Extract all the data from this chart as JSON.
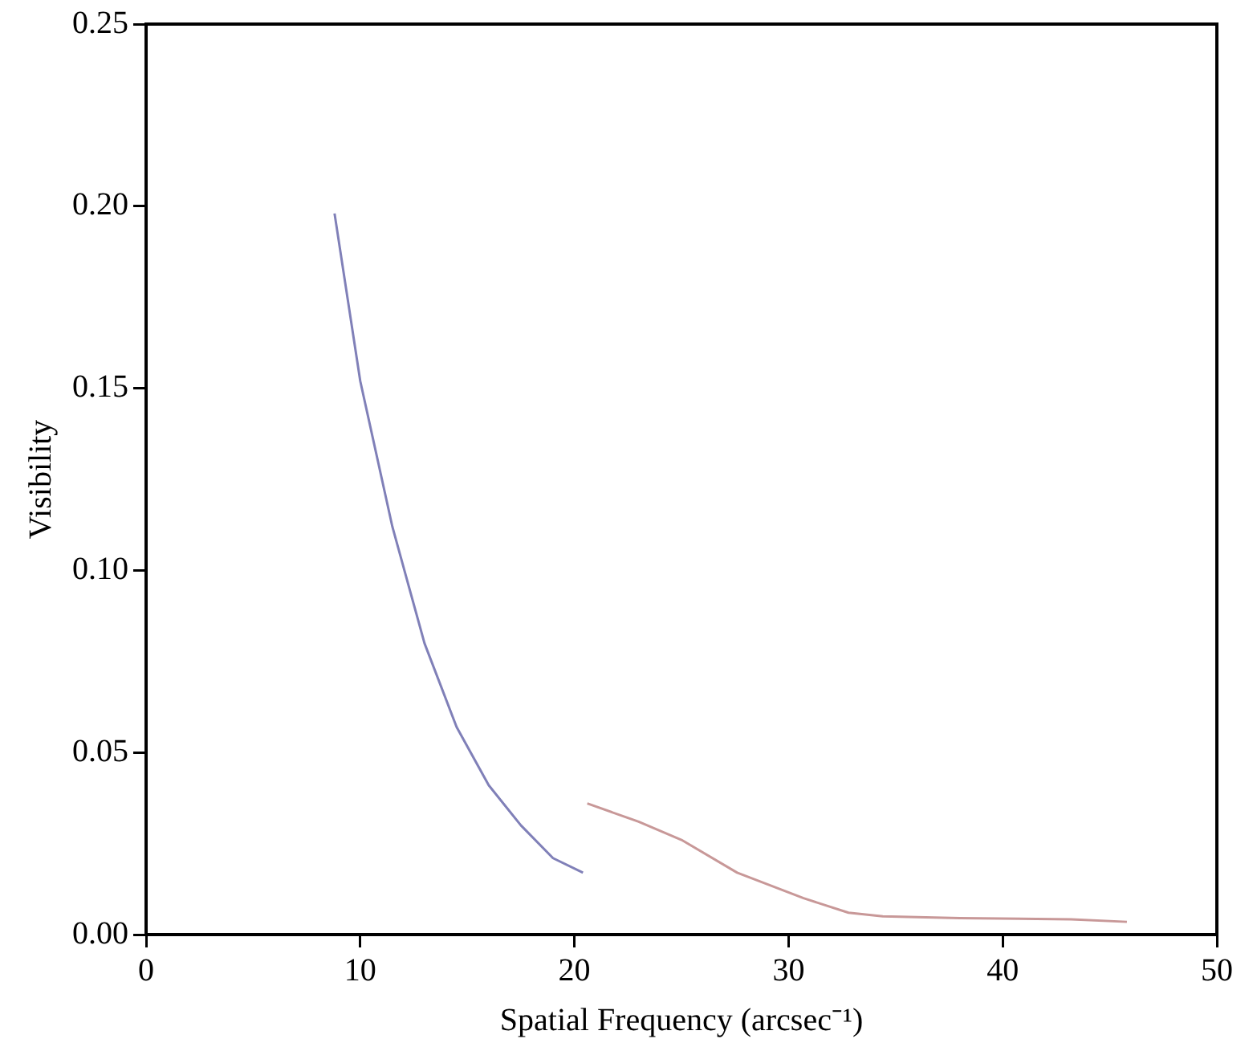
{
  "chart_data": {
    "type": "line",
    "xlabel": "Spatial Frequency (arcsec⁻¹)",
    "ylabel": "Visibility",
    "xlim": [
      0,
      50
    ],
    "xticks": [
      0,
      10,
      20,
      30,
      40,
      50
    ],
    "ylim": [
      0,
      0.25
    ],
    "yticks": [
      {
        "value": 0,
        "label": "0.00"
      },
      {
        "value": 0.05,
        "label": "0.05"
      },
      {
        "value": 0.1,
        "label": "0.10"
      },
      {
        "value": 0.15,
        "label": "0.15"
      },
      {
        "value": 0.2,
        "label": "0.20"
      },
      {
        "value": 0.25,
        "label": "0.25"
      }
    ],
    "grid": false,
    "legend": false,
    "marker": "none",
    "line_style": "solid",
    "series": [
      {
        "color": "#8080b8",
        "x": [
          8.8,
          10,
          11.5,
          13,
          14.5,
          16,
          17.5,
          19,
          20.4
        ],
        "values": [
          0.198,
          0.152,
          0.112,
          0.08,
          0.057,
          0.041,
          0.03,
          0.021,
          0.017
        ]
      },
      {
        "color": "#c89898",
        "x": [
          20.6,
          23,
          25,
          27.6,
          30.7,
          32.8,
          34.4,
          38,
          43.2,
          45.8
        ],
        "values": [
          0.036,
          0.031,
          0.026,
          0.017,
          0.01,
          0.006,
          0.005,
          0.0045,
          0.0042,
          0.0035
        ]
      }
    ]
  }
}
